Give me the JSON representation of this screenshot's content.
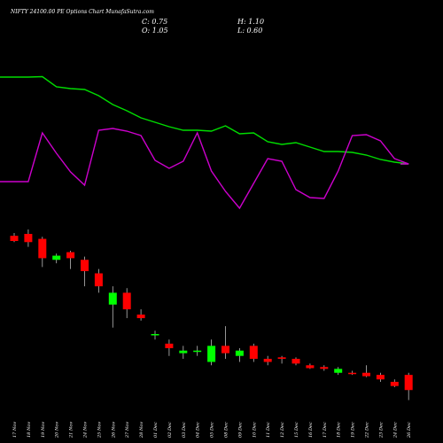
{
  "header": {
    "title": "NIFTY 24100.00 PE Options  Chart MunafaSutra.com",
    "close": "C: 0.75",
    "open": "O: 1.05",
    "high": "H: 1.10",
    "low": "L: 0.60"
  },
  "colors": {
    "background": "#000000",
    "text": "#ffffff",
    "up": "#00ff00",
    "down": "#ff0000",
    "line_green": "#00dd00",
    "line_purple": "#cc00cc",
    "wick": "#bbbbbb"
  },
  "chart_data": {
    "type": "candlestick",
    "x": [
      "17 Nov",
      "18 Nov",
      "19 Nov",
      "20 Nov",
      "21 Nov",
      "24 Nov",
      "25 Nov",
      "26 Nov",
      "27 Nov",
      "28 Nov",
      "01 Dec",
      "02 Dec",
      "03 Dec",
      "04 Dec",
      "05 Dec",
      "08 Dec",
      "09 Dec",
      "10 Dec",
      "11 Dec",
      "12 Dec",
      "15 Dec",
      "16 Dec",
      "17 Dec",
      "18 Dec",
      "19 Dec",
      "22 Dec",
      "23 Dec",
      "24 Dec",
      "26 Dec"
    ],
    "candles": [
      {
        "open": 23.0,
        "high": 24.5,
        "low": 20.0,
        "close": 20.5
      },
      {
        "open": 24.0,
        "high": 26.5,
        "low": 18.0,
        "close": 20.0
      },
      {
        "open": 21.5,
        "high": 22.5,
        "low": 11.5,
        "close": 14.0
      },
      {
        "open": 13.5,
        "high": 15.5,
        "low": 12.5,
        "close": 14.8
      },
      {
        "open": 16.0,
        "high": 16.5,
        "low": 11.0,
        "close": 14.0
      },
      {
        "open": 13.5,
        "high": 14.5,
        "low": 7.5,
        "close": 10.5
      },
      {
        "open": 10.0,
        "high": 11.0,
        "low": 6.5,
        "close": 7.5
      },
      {
        "open": 5.0,
        "high": 7.5,
        "low": 3.0,
        "close": 6.5
      },
      {
        "open": 6.5,
        "high": 7.2,
        "low": 3.7,
        "close": 4.5
      },
      {
        "open": 4.0,
        "high": 4.5,
        "low": 3.5,
        "close": 3.7
      },
      {
        "open": 2.6,
        "high": 2.8,
        "low": 2.3,
        "close": 2.6
      },
      {
        "open": 2.1,
        "high": 2.3,
        "low": 1.6,
        "close": 1.9
      },
      {
        "open": 1.7,
        "high": 2.0,
        "low": 1.5,
        "close": 1.8
      },
      {
        "open": 1.8,
        "high": 2.0,
        "low": 1.6,
        "close": 1.8
      },
      {
        "open": 1.4,
        "high": 2.3,
        "low": 1.3,
        "close": 2.0
      },
      {
        "open": 2.0,
        "high": 3.1,
        "low": 1.5,
        "close": 1.7
      },
      {
        "open": 1.6,
        "high": 1.9,
        "low": 1.4,
        "close": 1.8
      },
      {
        "open": 2.0,
        "high": 2.1,
        "low": 1.4,
        "close": 1.5
      },
      {
        "open": 1.5,
        "high": 1.6,
        "low": 1.3,
        "close": 1.4
      },
      {
        "open": 1.55,
        "high": 1.6,
        "low": 1.35,
        "close": 1.5
      },
      {
        "open": 1.5,
        "high": 1.55,
        "low": 1.3,
        "close": 1.35
      },
      {
        "open": 1.3,
        "high": 1.35,
        "low": 1.2,
        "close": 1.22
      },
      {
        "open": 1.25,
        "high": 1.3,
        "low": 1.15,
        "close": 1.2
      },
      {
        "open": 1.1,
        "high": 1.25,
        "low": 1.05,
        "close": 1.2
      },
      {
        "open": 1.1,
        "high": 1.15,
        "low": 1.05,
        "close": 1.08
      },
      {
        "open": 1.1,
        "high": 1.3,
        "low": 1.0,
        "close": 1.02
      },
      {
        "open": 1.05,
        "high": 1.1,
        "low": 0.9,
        "close": 0.95
      },
      {
        "open": 0.9,
        "high": 0.95,
        "low": 0.8,
        "close": 0.82
      },
      {
        "open": 1.05,
        "high": 1.1,
        "low": 0.6,
        "close": 0.75
      }
    ],
    "green_line": [
      87,
      87,
      86.5,
      98,
      100,
      101,
      108,
      118,
      125,
      133,
      138,
      143,
      147,
      147,
      148,
      142,
      151,
      150,
      160,
      163,
      161,
      166,
      171,
      171,
      172,
      175,
      180,
      183,
      185
    ],
    "purple_line": [
      205,
      205,
      150,
      173,
      194,
      209,
      147,
      145,
      148,
      153,
      181,
      190,
      182,
      150,
      193,
      216,
      235,
      207,
      179,
      182,
      214,
      223,
      224,
      193,
      153,
      152,
      159,
      179,
      185
    ]
  }
}
